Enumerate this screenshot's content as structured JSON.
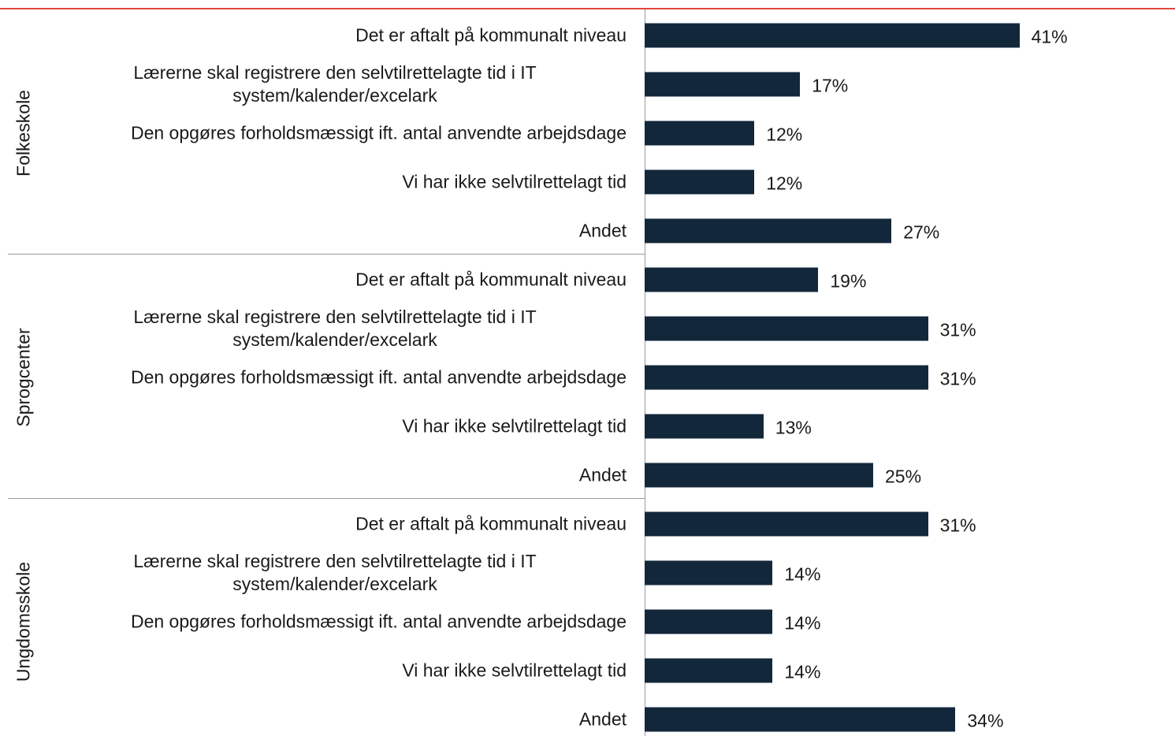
{
  "chart_data": {
    "type": "bar",
    "color": "#13273b",
    "groups": [
      {
        "name": "Folkeskole",
        "categories": [
          "Det er aftalt på kommunalt niveau",
          "Lærerne skal registrere den selvtilrettelagte tid i IT system/kalender/excelark",
          "Den opgøres forholdsmæssigt ift. antal anvendte arbejdsdage",
          "Vi har ikke selvtilrettelagt tid",
          "Andet"
        ],
        "values": [
          41,
          17,
          12,
          12,
          27
        ],
        "value_labels": [
          "41%",
          "17%",
          "12%",
          "12%",
          "27%"
        ]
      },
      {
        "name": "Sprogcenter",
        "categories": [
          "Det er aftalt på kommunalt niveau",
          "Lærerne skal registrere den selvtilrettelagte tid i IT system/kalender/excelark",
          "Den opgøres forholdsmæssigt ift. antal anvendte arbejdsdage",
          "Vi har ikke selvtilrettelagt tid",
          "Andet"
        ],
        "values": [
          19,
          31,
          31,
          13,
          25
        ],
        "value_labels": [
          "19%",
          "31%",
          "31%",
          "13%",
          "25%"
        ]
      },
      {
        "name": "Ungdomsskole",
        "categories": [
          "Det er aftalt på kommunalt niveau",
          "Lærerne skal registrere den selvtilrettelagte tid i IT system/kalender/excelark",
          "Den opgøres forholdsmæssigt ift. antal anvendte arbejdsdage",
          "Vi har ikke selvtilrettelagt tid",
          "Andet"
        ],
        "values": [
          31,
          14,
          14,
          14,
          34
        ],
        "value_labels": [
          "31%",
          "14%",
          "14%",
          "14%",
          "34%"
        ]
      }
    ]
  }
}
